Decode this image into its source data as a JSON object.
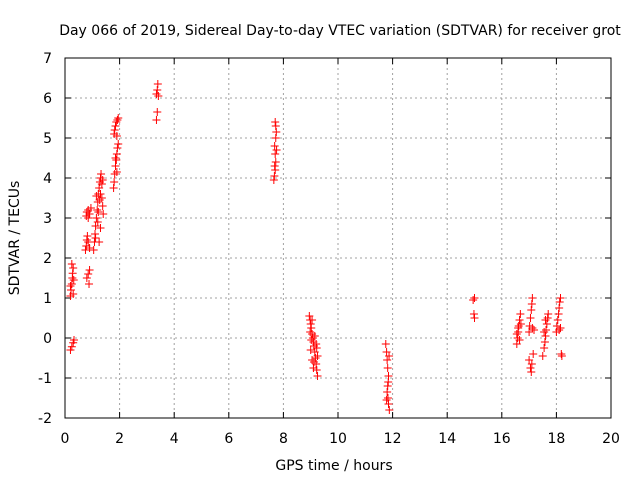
{
  "chart_data": {
    "type": "scatter",
    "title": "Day 066 of 2019, Sidereal Day-to-day VTEC variation (SDTVAR) for receiver grot",
    "xlabel": "GPS time / hours",
    "ylabel": "SDTVAR / TECUs",
    "xlim": [
      0,
      20
    ],
    "ylim": [
      -2,
      7
    ],
    "xticks": [
      0,
      2,
      4,
      6,
      8,
      10,
      12,
      14,
      16,
      18,
      20
    ],
    "yticks": [
      -2,
      -1,
      0,
      1,
      2,
      3,
      4,
      5,
      6,
      7
    ],
    "grid": true,
    "marker": "+",
    "color": "#ff0000",
    "series": [
      {
        "name": "SDTVAR",
        "points": [
          [
            0.2,
            1.05
          ],
          [
            0.22,
            1.2
          ],
          [
            0.25,
            1.35
          ],
          [
            0.27,
            1.5
          ],
          [
            0.28,
            1.62
          ],
          [
            0.3,
            1.75
          ],
          [
            0.25,
            1.85
          ],
          [
            0.2,
            1.3
          ],
          [
            0.3,
            1.1
          ],
          [
            0.32,
            1.45
          ],
          [
            0.2,
            -0.3
          ],
          [
            0.25,
            -0.22
          ],
          [
            0.3,
            -0.12
          ],
          [
            0.33,
            -0.05
          ],
          [
            0.75,
            2.2
          ],
          [
            0.78,
            2.3
          ],
          [
            0.8,
            2.45
          ],
          [
            0.82,
            2.55
          ],
          [
            0.85,
            2.4
          ],
          [
            0.9,
            2.25
          ],
          [
            0.8,
            1.5
          ],
          [
            0.85,
            1.6
          ],
          [
            0.88,
            1.35
          ],
          [
            0.9,
            1.7
          ],
          [
            0.78,
            3.05
          ],
          [
            0.8,
            3.15
          ],
          [
            0.85,
            3.2
          ],
          [
            0.9,
            3.1
          ],
          [
            0.95,
            3.25
          ],
          [
            0.85,
            3.0
          ],
          [
            1.05,
            2.2
          ],
          [
            1.08,
            2.4
          ],
          [
            1.1,
            2.6
          ],
          [
            1.12,
            2.8
          ],
          [
            1.15,
            3.0
          ],
          [
            1.18,
            3.2
          ],
          [
            1.2,
            3.4
          ],
          [
            1.22,
            3.6
          ],
          [
            1.25,
            3.75
          ],
          [
            1.28,
            3.9
          ],
          [
            1.3,
            4.0
          ],
          [
            1.32,
            4.1
          ],
          [
            1.35,
            3.5
          ],
          [
            1.38,
            3.3
          ],
          [
            1.4,
            3.1
          ],
          [
            1.12,
            2.5
          ],
          [
            1.2,
            2.9
          ],
          [
            1.27,
            3.45
          ],
          [
            1.3,
            3.6
          ],
          [
            1.35,
            3.85
          ],
          [
            1.15,
            3.55
          ],
          [
            1.22,
            3.15
          ],
          [
            1.3,
            2.75
          ],
          [
            1.38,
            3.95
          ],
          [
            1.25,
            2.4
          ],
          [
            1.78,
            3.75
          ],
          [
            1.8,
            3.9
          ],
          [
            1.82,
            4.1
          ],
          [
            1.85,
            4.3
          ],
          [
            1.88,
            4.45
          ],
          [
            1.9,
            4.6
          ],
          [
            1.92,
            4.75
          ],
          [
            1.95,
            4.85
          ],
          [
            1.85,
            4.5
          ],
          [
            1.9,
            4.15
          ],
          [
            1.8,
            5.1
          ],
          [
            1.82,
            5.2
          ],
          [
            1.85,
            5.3
          ],
          [
            1.88,
            5.4
          ],
          [
            1.92,
            5.45
          ],
          [
            1.95,
            5.5
          ],
          [
            1.9,
            5.05
          ],
          [
            3.35,
            5.45
          ],
          [
            3.38,
            5.65
          ],
          [
            3.35,
            6.1
          ],
          [
            3.38,
            6.2
          ],
          [
            3.4,
            6.35
          ],
          [
            3.42,
            6.05
          ],
          [
            7.65,
            3.95
          ],
          [
            7.67,
            4.05
          ],
          [
            7.7,
            4.2
          ],
          [
            7.72,
            4.4
          ],
          [
            7.7,
            4.6
          ],
          [
            7.68,
            4.8
          ],
          [
            7.72,
            5.0
          ],
          [
            7.74,
            5.15
          ],
          [
            7.72,
            5.3
          ],
          [
            7.7,
            5.4
          ],
          [
            7.68,
            4.3
          ],
          [
            7.75,
            4.7
          ],
          [
            8.95,
            0.55
          ],
          [
            8.98,
            0.45
          ],
          [
            9.0,
            0.35
          ],
          [
            9.02,
            0.25
          ],
          [
            9.05,
            0.1
          ],
          [
            9.08,
            0.0
          ],
          [
            9.1,
            -0.1
          ],
          [
            9.12,
            -0.2
          ],
          [
            9.15,
            -0.35
          ],
          [
            9.18,
            -0.5
          ],
          [
            9.2,
            -0.65
          ],
          [
            9.22,
            -0.8
          ],
          [
            9.25,
            -0.95
          ],
          [
            9.0,
            -0.3
          ],
          [
            9.05,
            -0.55
          ],
          [
            9.1,
            -0.75
          ],
          [
            9.15,
            0.05
          ],
          [
            9.2,
            -0.15
          ],
          [
            9.25,
            -0.45
          ],
          [
            9.02,
            -0.05
          ],
          [
            8.98,
            0.15
          ],
          [
            9.12,
            -0.6
          ],
          [
            9.22,
            -0.25
          ],
          [
            9.05,
            0.45
          ],
          [
            11.75,
            -0.15
          ],
          [
            11.78,
            -0.35
          ],
          [
            11.8,
            -0.55
          ],
          [
            11.82,
            -0.75
          ],
          [
            11.85,
            -0.95
          ],
          [
            11.8,
            -1.35
          ],
          [
            11.83,
            -1.5
          ],
          [
            11.85,
            -1.65
          ],
          [
            11.88,
            -1.8
          ],
          [
            11.82,
            -1.2
          ],
          [
            11.78,
            -1.55
          ],
          [
            11.87,
            -0.45
          ],
          [
            11.84,
            -1.1
          ],
          [
            14.95,
            0.95
          ],
          [
            15.0,
            1.0
          ],
          [
            14.98,
            0.6
          ],
          [
            15.0,
            0.5
          ],
          [
            16.55,
            -0.15
          ],
          [
            16.58,
            0.0
          ],
          [
            16.6,
            0.15
          ],
          [
            16.62,
            0.3
          ],
          [
            16.65,
            0.45
          ],
          [
            16.68,
            0.6
          ],
          [
            16.6,
            0.25
          ],
          [
            16.55,
            0.1
          ],
          [
            16.65,
            -0.05
          ],
          [
            16.7,
            0.35
          ],
          [
            17.0,
            0.15
          ],
          [
            17.02,
            0.3
          ],
          [
            17.05,
            0.5
          ],
          [
            17.08,
            0.7
          ],
          [
            17.1,
            0.85
          ],
          [
            17.12,
            1.0
          ],
          [
            17.0,
            -0.55
          ],
          [
            17.05,
            -0.75
          ],
          [
            17.08,
            -0.85
          ],
          [
            17.1,
            -0.65
          ],
          [
            17.15,
            -0.4
          ],
          [
            17.18,
            0.2
          ],
          [
            17.12,
            0.25
          ],
          [
            17.5,
            -0.45
          ],
          [
            17.55,
            -0.25
          ],
          [
            17.58,
            -0.1
          ],
          [
            17.6,
            0.05
          ],
          [
            17.62,
            0.2
          ],
          [
            17.65,
            0.35
          ],
          [
            17.68,
            0.5
          ],
          [
            17.7,
            0.6
          ],
          [
            17.6,
            0.45
          ],
          [
            17.55,
            0.15
          ],
          [
            18.0,
            0.15
          ],
          [
            18.02,
            0.3
          ],
          [
            18.05,
            0.45
          ],
          [
            18.08,
            0.6
          ],
          [
            18.1,
            0.75
          ],
          [
            18.12,
            0.9
          ],
          [
            18.15,
            1.0
          ],
          [
            18.1,
            0.2
          ],
          [
            18.15,
            0.25
          ],
          [
            18.2,
            -0.45
          ],
          [
            18.18,
            -0.4
          ]
        ]
      }
    ]
  }
}
